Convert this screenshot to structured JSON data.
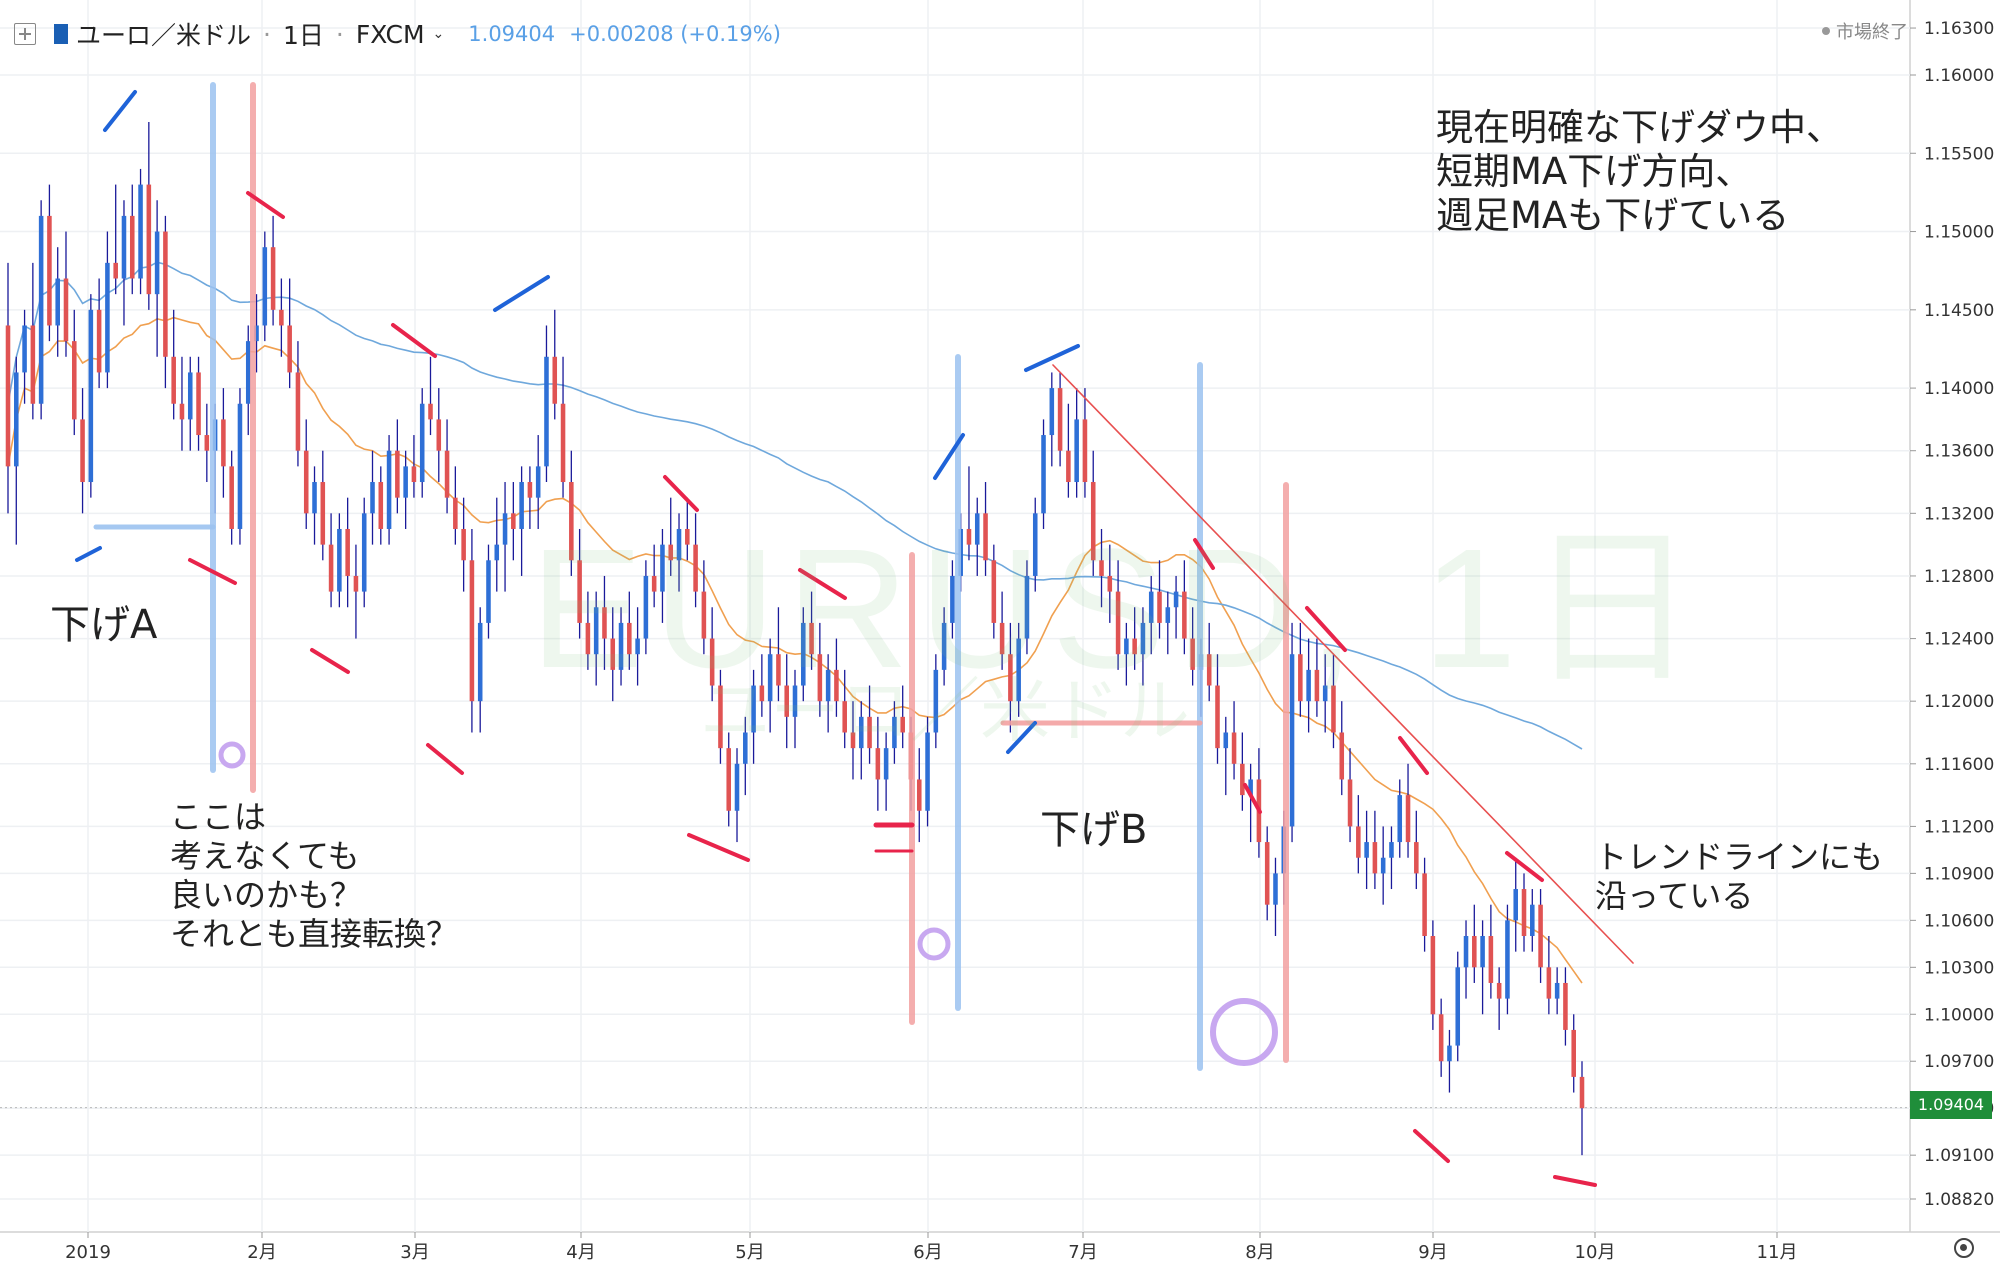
{
  "header": {
    "symbol": "ユーロ／米ドル",
    "interval": "1日",
    "exchange": "FXCM",
    "last_price": "1.09404",
    "change": "+0.00208 (+0.19%)"
  },
  "status": {
    "label": "市場終了"
  },
  "watermark": {
    "main": "EURUSD, 1日",
    "sub": "ユーロ／米ドル"
  },
  "notes": {
    "top_right": "現在明確な下げダウ中、\n短期MA下げ方向、\n週足MAも下げている",
    "down_a": "下げA",
    "down_b": "下げB",
    "left_question": "ここは\n考えなくても\n良いのかも？\nそれとも直接転換？",
    "trendline_note": "トレンドラインにも\n沿っている"
  },
  "icons": {
    "add": "plus-square-icon",
    "flag": "eu-flag-icon",
    "status": "status-dot-icon",
    "settings": "gear-icon",
    "dropdown": "chevron-down-icon"
  },
  "colors": {
    "up": "#2e6fd6",
    "down": "#e05353",
    "wick": "#1a1a9a",
    "ma_short": "#f0a050",
    "ma_long": "#6fa8dc",
    "last_price_bg": "#1f8e3a"
  },
  "chart_data": {
    "type": "candlestick",
    "symbol": "EURUSD",
    "interval": "1日",
    "ylim": [
      1.0858,
      1.1642
    ],
    "y_ticks": [
      "1.16300",
      "1.16000",
      "1.15500",
      "1.15000",
      "1.14500",
      "1.14000",
      "1.13600",
      "1.13200",
      "1.12800",
      "1.12400",
      "1.12000",
      "1.11600",
      "1.11200",
      "1.10900",
      "1.10600",
      "1.10300",
      "1.10000",
      "1.09700",
      "1.09400",
      "1.09100",
      "1.08820"
    ],
    "x_ticks": [
      "2019",
      "2月",
      "3月",
      "4月",
      "5月",
      "6月",
      "7月",
      "8月",
      "9月",
      "10月",
      "11月"
    ],
    "last_price": 1.09404,
    "candles": [
      [
        1.144,
        1.148,
        1.132,
        1.135
      ],
      [
        1.135,
        1.142,
        1.13,
        1.141
      ],
      [
        1.141,
        1.145,
        1.139,
        1.144
      ],
      [
        1.144,
        1.148,
        1.138,
        1.139
      ],
      [
        1.139,
        1.152,
        1.138,
        1.151
      ],
      [
        1.151,
        1.153,
        1.143,
        1.144
      ],
      [
        1.144,
        1.149,
        1.142,
        1.147
      ],
      [
        1.147,
        1.15,
        1.142,
        1.143
      ],
      [
        1.143,
        1.145,
        1.137,
        1.138
      ],
      [
        1.138,
        1.14,
        1.132,
        1.134
      ],
      [
        1.134,
        1.146,
        1.133,
        1.145
      ],
      [
        1.145,
        1.147,
        1.14,
        1.141
      ],
      [
        1.141,
        1.15,
        1.14,
        1.148
      ],
      [
        1.148,
        1.153,
        1.146,
        1.147
      ],
      [
        1.147,
        1.152,
        1.144,
        1.151
      ],
      [
        1.151,
        1.153,
        1.146,
        1.147
      ],
      [
        1.147,
        1.154,
        1.146,
        1.153
      ],
      [
        1.153,
        1.157,
        1.145,
        1.146
      ],
      [
        1.146,
        1.152,
        1.142,
        1.15
      ],
      [
        1.15,
        1.151,
        1.14,
        1.142
      ],
      [
        1.142,
        1.145,
        1.138,
        1.139
      ],
      [
        1.139,
        1.142,
        1.136,
        1.138
      ],
      [
        1.138,
        1.142,
        1.136,
        1.141
      ],
      [
        1.141,
        1.142,
        1.136,
        1.137
      ],
      [
        1.137,
        1.139,
        1.134,
        1.136
      ],
      [
        1.136,
        1.139,
        1.132,
        1.138
      ],
      [
        1.138,
        1.14,
        1.133,
        1.135
      ],
      [
        1.135,
        1.136,
        1.13,
        1.131
      ],
      [
        1.131,
        1.14,
        1.13,
        1.139
      ],
      [
        1.139,
        1.144,
        1.137,
        1.143
      ],
      [
        1.143,
        1.146,
        1.141,
        1.144
      ],
      [
        1.144,
        1.15,
        1.143,
        1.149
      ],
      [
        1.149,
        1.151,
        1.144,
        1.145
      ],
      [
        1.145,
        1.147,
        1.142,
        1.144
      ],
      [
        1.144,
        1.147,
        1.14,
        1.141
      ],
      [
        1.141,
        1.143,
        1.135,
        1.136
      ],
      [
        1.136,
        1.138,
        1.131,
        1.132
      ],
      [
        1.132,
        1.135,
        1.13,
        1.134
      ],
      [
        1.134,
        1.136,
        1.129,
        1.13
      ],
      [
        1.13,
        1.132,
        1.126,
        1.127
      ],
      [
        1.127,
        1.132,
        1.126,
        1.131
      ],
      [
        1.131,
        1.133,
        1.126,
        1.128
      ],
      [
        1.128,
        1.13,
        1.124,
        1.127
      ],
      [
        1.127,
        1.133,
        1.126,
        1.132
      ],
      [
        1.132,
        1.136,
        1.13,
        1.134
      ],
      [
        1.134,
        1.135,
        1.13,
        1.131
      ],
      [
        1.131,
        1.137,
        1.13,
        1.136
      ],
      [
        1.136,
        1.138,
        1.132,
        1.133
      ],
      [
        1.133,
        1.136,
        1.131,
        1.135
      ],
      [
        1.135,
        1.137,
        1.133,
        1.134
      ],
      [
        1.134,
        1.14,
        1.133,
        1.139
      ],
      [
        1.139,
        1.142,
        1.137,
        1.138
      ],
      [
        1.138,
        1.14,
        1.134,
        1.136
      ],
      [
        1.136,
        1.138,
        1.132,
        1.133
      ],
      [
        1.133,
        1.135,
        1.13,
        1.131
      ],
      [
        1.131,
        1.133,
        1.127,
        1.129
      ],
      [
        1.129,
        1.131,
        1.118,
        1.12
      ],
      [
        1.12,
        1.126,
        1.118,
        1.125
      ],
      [
        1.125,
        1.13,
        1.124,
        1.129
      ],
      [
        1.129,
        1.133,
        1.127,
        1.13
      ],
      [
        1.13,
        1.134,
        1.127,
        1.132
      ],
      [
        1.132,
        1.134,
        1.129,
        1.131
      ],
      [
        1.131,
        1.135,
        1.128,
        1.134
      ],
      [
        1.134,
        1.135,
        1.131,
        1.133
      ],
      [
        1.133,
        1.137,
        1.131,
        1.135
      ],
      [
        1.135,
        1.144,
        1.134,
        1.142
      ],
      [
        1.142,
        1.145,
        1.138,
        1.139
      ],
      [
        1.139,
        1.142,
        1.133,
        1.134
      ],
      [
        1.134,
        1.136,
        1.128,
        1.129
      ],
      [
        1.129,
        1.131,
        1.124,
        1.125
      ],
      [
        1.125,
        1.127,
        1.122,
        1.123
      ],
      [
        1.123,
        1.127,
        1.121,
        1.126
      ],
      [
        1.126,
        1.128,
        1.122,
        1.124
      ],
      [
        1.124,
        1.126,
        1.12,
        1.122
      ],
      [
        1.122,
        1.126,
        1.121,
        1.125
      ],
      [
        1.125,
        1.127,
        1.122,
        1.123
      ],
      [
        1.123,
        1.126,
        1.121,
        1.124
      ],
      [
        1.124,
        1.129,
        1.123,
        1.128
      ],
      [
        1.128,
        1.13,
        1.126,
        1.127
      ],
      [
        1.127,
        1.131,
        1.125,
        1.13
      ],
      [
        1.13,
        1.133,
        1.128,
        1.129
      ],
      [
        1.129,
        1.132,
        1.127,
        1.131
      ],
      [
        1.131,
        1.133,
        1.129,
        1.13
      ],
      [
        1.13,
        1.132,
        1.126,
        1.127
      ],
      [
        1.127,
        1.129,
        1.123,
        1.124
      ],
      [
        1.124,
        1.126,
        1.12,
        1.121
      ],
      [
        1.121,
        1.122,
        1.116,
        1.117
      ],
      [
        1.117,
        1.118,
        1.112,
        1.113
      ],
      [
        1.113,
        1.117,
        1.111,
        1.116
      ],
      [
        1.116,
        1.119,
        1.114,
        1.118
      ],
      [
        1.118,
        1.122,
        1.116,
        1.121
      ],
      [
        1.121,
        1.123,
        1.119,
        1.12
      ],
      [
        1.12,
        1.124,
        1.118,
        1.123
      ],
      [
        1.123,
        1.126,
        1.12,
        1.121
      ],
      [
        1.121,
        1.123,
        1.117,
        1.119
      ],
      [
        1.119,
        1.122,
        1.117,
        1.121
      ],
      [
        1.121,
        1.126,
        1.12,
        1.125
      ],
      [
        1.125,
        1.127,
        1.122,
        1.123
      ],
      [
        1.123,
        1.125,
        1.119,
        1.12
      ],
      [
        1.12,
        1.123,
        1.118,
        1.122
      ],
      [
        1.122,
        1.124,
        1.119,
        1.12
      ],
      [
        1.12,
        1.122,
        1.117,
        1.118
      ],
      [
        1.118,
        1.12,
        1.115,
        1.117
      ],
      [
        1.117,
        1.12,
        1.115,
        1.119
      ],
      [
        1.119,
        1.121,
        1.116,
        1.117
      ],
      [
        1.117,
        1.119,
        1.113,
        1.115
      ],
      [
        1.115,
        1.118,
        1.113,
        1.117
      ],
      [
        1.117,
        1.12,
        1.116,
        1.119
      ],
      [
        1.119,
        1.121,
        1.117,
        1.118
      ],
      [
        1.118,
        1.119,
        1.113,
        1.115
      ],
      [
        1.115,
        1.117,
        1.111,
        1.113
      ],
      [
        1.113,
        1.119,
        1.112,
        1.118
      ],
      [
        1.118,
        1.123,
        1.117,
        1.122
      ],
      [
        1.122,
        1.126,
        1.121,
        1.125
      ],
      [
        1.125,
        1.129,
        1.124,
        1.128
      ],
      [
        1.128,
        1.132,
        1.127,
        1.131
      ],
      [
        1.131,
        1.135,
        1.129,
        1.13
      ],
      [
        1.13,
        1.133,
        1.128,
        1.132
      ],
      [
        1.132,
        1.134,
        1.128,
        1.129
      ],
      [
        1.129,
        1.13,
        1.124,
        1.125
      ],
      [
        1.125,
        1.127,
        1.122,
        1.123
      ],
      [
        1.123,
        1.125,
        1.118,
        1.12
      ],
      [
        1.12,
        1.125,
        1.119,
        1.124
      ],
      [
        1.124,
        1.129,
        1.123,
        1.128
      ],
      [
        1.128,
        1.133,
        1.127,
        1.132
      ],
      [
        1.132,
        1.138,
        1.131,
        1.137
      ],
      [
        1.137,
        1.141,
        1.135,
        1.14
      ],
      [
        1.14,
        1.141,
        1.135,
        1.136
      ],
      [
        1.136,
        1.139,
        1.133,
        1.134
      ],
      [
        1.134,
        1.14,
        1.133,
        1.138
      ],
      [
        1.138,
        1.14,
        1.133,
        1.134
      ],
      [
        1.134,
        1.136,
        1.128,
        1.129
      ],
      [
        1.129,
        1.131,
        1.126,
        1.128
      ],
      [
        1.128,
        1.13,
        1.125,
        1.127
      ],
      [
        1.127,
        1.129,
        1.122,
        1.123
      ],
      [
        1.123,
        1.125,
        1.121,
        1.124
      ],
      [
        1.124,
        1.126,
        1.122,
        1.123
      ],
      [
        1.123,
        1.126,
        1.121,
        1.125
      ],
      [
        1.125,
        1.128,
        1.123,
        1.127
      ],
      [
        1.127,
        1.129,
        1.124,
        1.125
      ],
      [
        1.125,
        1.127,
        1.123,
        1.126
      ],
      [
        1.126,
        1.128,
        1.124,
        1.127
      ],
      [
        1.127,
        1.129,
        1.123,
        1.124
      ],
      [
        1.124,
        1.126,
        1.121,
        1.122
      ],
      [
        1.122,
        1.124,
        1.119,
        1.123
      ],
      [
        1.123,
        1.125,
        1.12,
        1.121
      ],
      [
        1.121,
        1.123,
        1.116,
        1.117
      ],
      [
        1.117,
        1.119,
        1.114,
        1.118
      ],
      [
        1.118,
        1.12,
        1.115,
        1.116
      ],
      [
        1.116,
        1.118,
        1.113,
        1.114
      ],
      [
        1.114,
        1.116,
        1.111,
        1.115
      ],
      [
        1.115,
        1.117,
        1.11,
        1.111
      ],
      [
        1.111,
        1.112,
        1.106,
        1.107
      ],
      [
        1.107,
        1.11,
        1.105,
        1.109
      ],
      [
        1.109,
        1.113,
        1.107,
        1.112
      ],
      [
        1.112,
        1.125,
        1.111,
        1.123
      ],
      [
        1.123,
        1.125,
        1.119,
        1.12
      ],
      [
        1.12,
        1.124,
        1.118,
        1.122
      ],
      [
        1.122,
        1.124,
        1.119,
        1.12
      ],
      [
        1.12,
        1.123,
        1.118,
        1.121
      ],
      [
        1.121,
        1.123,
        1.117,
        1.118
      ],
      [
        1.118,
        1.12,
        1.114,
        1.115
      ],
      [
        1.115,
        1.117,
        1.111,
        1.112
      ],
      [
        1.112,
        1.114,
        1.109,
        1.11
      ],
      [
        1.11,
        1.113,
        1.108,
        1.111
      ],
      [
        1.111,
        1.113,
        1.108,
        1.109
      ],
      [
        1.109,
        1.112,
        1.107,
        1.11
      ],
      [
        1.11,
        1.112,
        1.108,
        1.111
      ],
      [
        1.111,
        1.115,
        1.11,
        1.114
      ],
      [
        1.114,
        1.116,
        1.11,
        1.111
      ],
      [
        1.111,
        1.113,
        1.108,
        1.109
      ],
      [
        1.109,
        1.11,
        1.104,
        1.105
      ],
      [
        1.105,
        1.106,
        1.099,
        1.1
      ],
      [
        1.1,
        1.101,
        1.096,
        1.097
      ],
      [
        1.097,
        1.099,
        1.095,
        1.098
      ],
      [
        1.098,
        1.104,
        1.097,
        1.103
      ],
      [
        1.103,
        1.106,
        1.101,
        1.105
      ],
      [
        1.105,
        1.107,
        1.102,
        1.103
      ],
      [
        1.103,
        1.106,
        1.1,
        1.105
      ],
      [
        1.105,
        1.107,
        1.101,
        1.102
      ],
      [
        1.102,
        1.103,
        1.099,
        1.101
      ],
      [
        1.101,
        1.107,
        1.1,
        1.106
      ],
      [
        1.106,
        1.11,
        1.104,
        1.108
      ],
      [
        1.108,
        1.109,
        1.104,
        1.105
      ],
      [
        1.105,
        1.108,
        1.104,
        1.107
      ],
      [
        1.107,
        1.108,
        1.102,
        1.103
      ],
      [
        1.103,
        1.105,
        1.1,
        1.101
      ],
      [
        1.101,
        1.103,
        1.1,
        1.102
      ],
      [
        1.102,
        1.103,
        1.098,
        1.099
      ],
      [
        1.099,
        1.1,
        1.095,
        1.096
      ],
      [
        1.096,
        1.097,
        1.091,
        1.094
      ]
    ],
    "ma_short_last": 1.101,
    "ma_long_last": 1.117
  }
}
